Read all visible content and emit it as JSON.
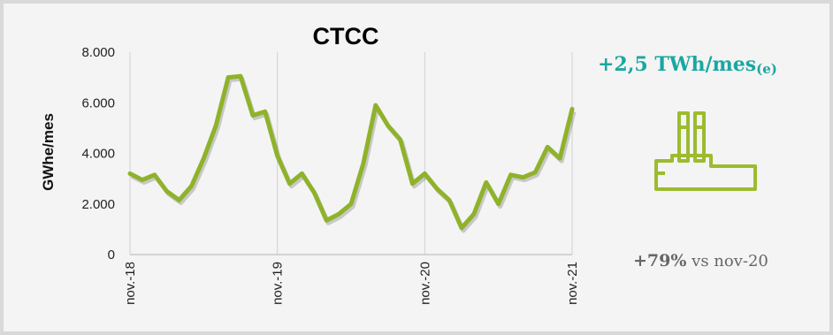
{
  "chart_data": {
    "type": "line",
    "title": "CTCC",
    "ylabel": "GWhe/mes",
    "xlabel": "",
    "ylim": [
      0,
      8000
    ],
    "y_ticks": [
      "0",
      "2.000",
      "4.000",
      "6.000",
      "8.000"
    ],
    "y_tick_values": [
      0,
      2000,
      4000,
      6000,
      8000
    ],
    "x_tick_labels": [
      "nov.-18",
      "nov.-19",
      "nov.-20",
      "nov.-21"
    ],
    "x_tick_index": [
      0,
      12,
      24,
      36
    ],
    "grid": "vertical",
    "series": [
      {
        "color": "#8fb22b",
        "values": [
          3200,
          2950,
          3150,
          2500,
          2150,
          2700,
          3800,
          5100,
          7000,
          7050,
          5500,
          5650,
          3900,
          2800,
          3200,
          2450,
          1350,
          1600,
          2000,
          3600,
          5900,
          5100,
          4550,
          2800,
          3200,
          2600,
          2150,
          1050,
          1600,
          2850,
          2000,
          3150,
          3050,
          3250,
          4250,
          3800,
          5750
        ]
      }
    ]
  },
  "kpi": {
    "value": "+2,5 TWh/mes",
    "value_suffix": "(e)",
    "change_pct": "+79%",
    "change_text": " vs nov-20",
    "icon": "power-plant-icon",
    "value_color": "#1aa7a1",
    "icon_color": "#9cbb2e"
  }
}
